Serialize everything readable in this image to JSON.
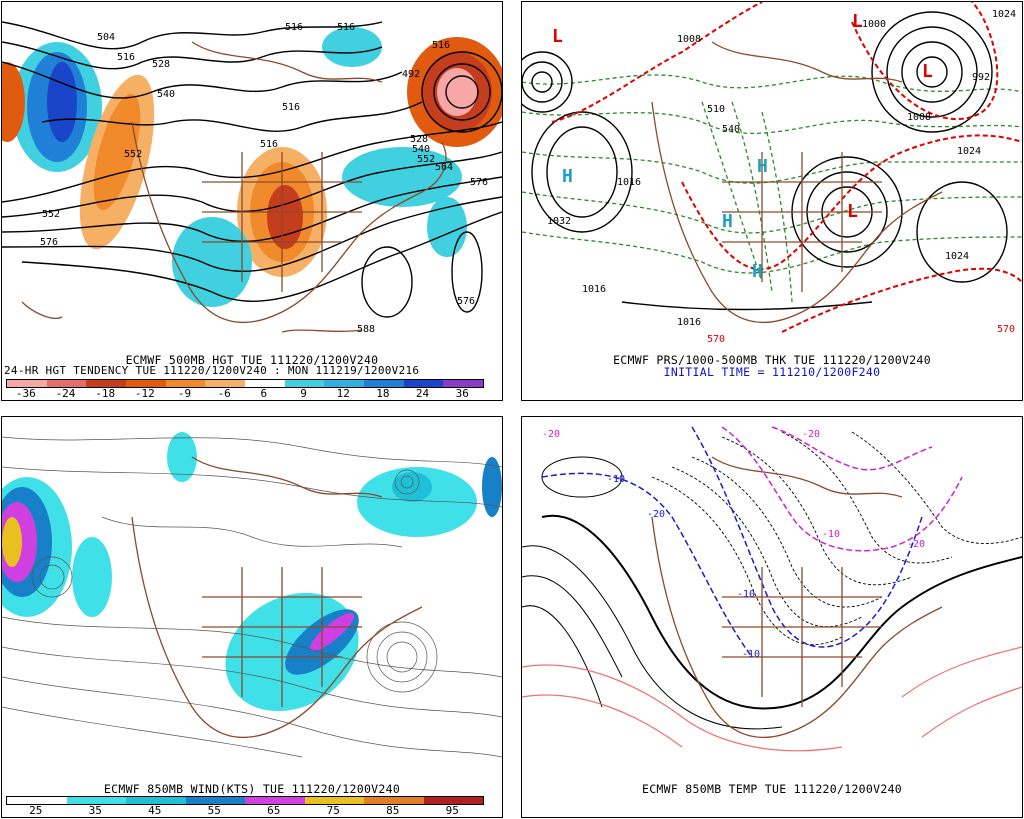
{
  "panels": {
    "p1": {
      "caption1": "ECMWF 500MB HGT TUE 111220/1200V240",
      "caption2": "24-HR HGT TENDENCY TUE 111220/1200V240 : MON 111219/1200V216",
      "colorbar": {
        "colors": [
          "#f7a7a7",
          "#e36d6d",
          "#c43d1d",
          "#e05a10",
          "#f08a2a",
          "#f5b065",
          "#ffffff",
          "#40d0e0",
          "#30b0e0",
          "#2080d8",
          "#1a45c8",
          "#8a3cc8"
        ],
        "labels": [
          "-36",
          "-24",
          "-18",
          "-12",
          "-9",
          "-6",
          "6",
          "9",
          "12",
          "18",
          "24",
          "36"
        ]
      },
      "contour_labels": [
        "504",
        "516",
        "528",
        "540",
        "552",
        "516",
        "516",
        "492",
        "516",
        "528",
        "540",
        "552",
        "564",
        "576",
        "552",
        "576",
        "576",
        "588",
        "516",
        "516"
      ]
    },
    "p2": {
      "caption1": "ECMWF PRS/1000-500MB THK TUE 111220/1200V240",
      "caption2": "INITIAL TIME = 111210/1200F240",
      "contour_labels": [
        "1032",
        "1016",
        "1024",
        "1008",
        "1024",
        "1000",
        "1008",
        "1016",
        "570",
        "510",
        "540",
        "992",
        "570",
        "1016",
        "1024"
      ],
      "high_symbol": "H",
      "low_symbol": "L"
    },
    "p3": {
      "caption1": "ECMWF 850MB WIND(KTS) TUE 111220/1200V240",
      "colorbar": {
        "colors": [
          "#ffffff",
          "#40e0e8",
          "#20c0d8",
          "#1880c8",
          "#d040e0",
          "#e8c020",
          "#e08020",
          "#b02020"
        ],
        "labels": [
          "25",
          "35",
          "45",
          "55",
          "65",
          "75",
          "85",
          "95"
        ]
      }
    },
    "p4": {
      "caption1": "ECMWF 850MB TEMP TUE 111220/1200V240",
      "contour_labels": [
        "-20",
        "-10",
        "-20",
        "-10",
        "-20",
        "-10",
        "-10",
        "-20"
      ]
    }
  }
}
